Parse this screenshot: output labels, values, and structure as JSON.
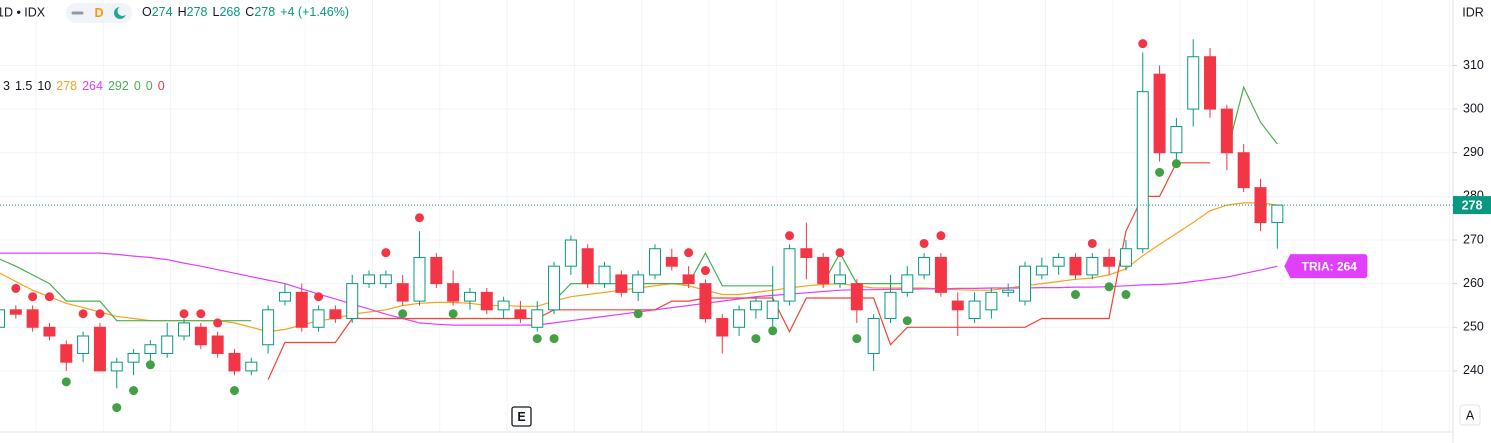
{
  "chart_data": {
    "type": "candlestick",
    "symbol": "1D • IDX",
    "interval": "D",
    "ohlc_labels": [
      "O",
      "H",
      "L",
      "C"
    ],
    "change": "+4 (+1.46%)",
    "indicator": {
      "params": [
        3,
        1.5,
        10
      ],
      "values": [
        278,
        264,
        292,
        0,
        0,
        0
      ],
      "colors": [
        "#f7a21b",
        "#e040fb",
        "#4caf50",
        "#4caf50",
        "#4caf50",
        "#f23645"
      ]
    },
    "currency": "IDR",
    "earnings_marker": "E",
    "auto_button": "A",
    "up_color": "#089981",
    "down_color": "#f23645",
    "open": [
      250,
      254,
      254,
      250,
      246,
      244,
      250,
      240,
      242,
      244,
      244,
      248,
      250,
      248,
      244,
      240,
      246,
      256,
      258,
      250,
      254,
      252,
      260,
      260,
      260,
      256,
      266,
      260,
      256,
      258,
      254,
      254,
      250,
      254,
      264,
      268,
      260,
      262,
      258,
      262,
      266,
      262,
      260,
      252,
      250,
      254,
      252,
      256,
      268,
      266,
      260,
      260,
      244,
      252,
      258,
      262,
      266,
      256,
      252,
      254,
      258,
      256,
      262,
      264,
      266,
      262,
      266,
      264,
      268,
      308,
      290,
      300,
      312,
      300,
      290,
      282,
      274
    ],
    "high": [
      256,
      255,
      255,
      251,
      247,
      249,
      251,
      243,
      245,
      247,
      251,
      252,
      251,
      249,
      245,
      243,
      255,
      260,
      260,
      255,
      255,
      262,
      263,
      263,
      262,
      272,
      267,
      263,
      259,
      259,
      257,
      256,
      256,
      265,
      271,
      269,
      265,
      263,
      263,
      269,
      268,
      264,
      261,
      253,
      255,
      257,
      264,
      269,
      274,
      267,
      265,
      261,
      253,
      262,
      264,
      267,
      267,
      258,
      258,
      259,
      260,
      265,
      266,
      267,
      267,
      267,
      268,
      270,
      313,
      310,
      298,
      316,
      314,
      301,
      292,
      284,
      278
    ],
    "low": [
      248,
      252,
      249,
      247,
      240,
      242,
      240,
      236,
      239,
      242,
      243,
      247,
      245,
      243,
      239,
      239,
      244,
      255,
      249,
      249,
      251,
      251,
      259,
      259,
      255,
      255,
      259,
      255,
      254,
      253,
      252,
      251,
      249,
      253,
      262,
      259,
      259,
      257,
      256,
      261,
      263,
      259,
      251,
      244,
      248,
      252,
      250,
      255,
      261,
      259,
      259,
      251,
      240,
      251,
      257,
      261,
      257,
      248,
      251,
      252,
      257,
      255,
      261,
      262,
      261,
      261,
      262,
      263,
      267,
      288,
      288,
      296,
      298,
      286,
      281,
      272,
      268
    ],
    "close": [
      254,
      253,
      250,
      248,
      242,
      248,
      240,
      242,
      244,
      246,
      248,
      251,
      246,
      244,
      240,
      242,
      254,
      258,
      250,
      254,
      252,
      260,
      262,
      262,
      256,
      266,
      260,
      256,
      258,
      254,
      256,
      252,
      254,
      264,
      270,
      260,
      264,
      258,
      262,
      268,
      264,
      260,
      252,
      248,
      254,
      256,
      256,
      268,
      266,
      260,
      262,
      254,
      252,
      258,
      262,
      266,
      258,
      254,
      256,
      258,
      258.5,
      264,
      264,
      266,
      262,
      266,
      264,
      268,
      304,
      290,
      296,
      312,
      300,
      290,
      282,
      274,
      278
    ],
    "series": [
      {
        "style": "line",
        "color": "#f7a21b",
        "values": [
          262.5,
          260.5,
          258.5,
          257,
          255.5,
          254.5,
          253.5,
          252.5,
          252,
          251.5,
          251.5,
          251.5,
          251.5,
          251.5,
          251,
          250,
          249,
          249.5,
          250.5,
          251.5,
          252,
          253,
          253.5,
          254,
          255,
          255.5,
          255.7,
          255.7,
          255.5,
          255,
          255,
          254.8,
          254.8,
          256,
          257,
          257.5,
          258,
          258.5,
          259,
          259.5,
          260,
          259.5,
          258.5,
          257.5,
          257.5,
          258,
          258.5,
          259,
          259.5,
          259.8,
          260,
          259.5,
          259,
          259,
          259,
          259,
          258.8,
          258.6,
          258.5,
          258.5,
          259,
          259.5,
          260,
          260.5,
          261,
          261.3,
          262,
          263.4,
          266.4,
          269,
          271.5,
          274,
          276.7,
          278,
          278.5,
          278.5,
          278
        ]
      },
      {
        "style": "line",
        "color": "#e040fb",
        "label": "TRIA: 264",
        "values": [
          267,
          267,
          267,
          267,
          267,
          267,
          267,
          266.7,
          266.3,
          266,
          265.5,
          264.7,
          264,
          263.2,
          262.4,
          261.6,
          260.8,
          260,
          258.8,
          257.6,
          256.5,
          255.3,
          254.2,
          253,
          252,
          251,
          250.7,
          250.5,
          250.5,
          250.5,
          250.5,
          250.5,
          250.5,
          251,
          251.5,
          252,
          252.5,
          253,
          253.5,
          254,
          254.5,
          255,
          255.5,
          256,
          256.5,
          257,
          257.3,
          257.6,
          257.9,
          258.2,
          258.5,
          258.6,
          258.6,
          258.7,
          258.7,
          258.8,
          258.8,
          258.9,
          258.9,
          259,
          259,
          259,
          259.1,
          259.1,
          259.2,
          259.2,
          259.3,
          259.5,
          259.7,
          259.8,
          260,
          260.5,
          261,
          261.5,
          262.3,
          263.1,
          264
        ]
      },
      {
        "style": "line",
        "color": "#4caf50",
        "values": [
          265.7,
          264,
          262,
          260,
          256,
          256,
          256,
          251.5,
          251.5,
          251.5,
          251.5,
          251.5,
          251.5,
          251.5,
          251.5,
          251.5,
          null,
          null,
          null,
          null,
          null,
          null,
          null,
          null,
          null,
          null,
          null,
          null,
          null,
          null,
          null,
          null,
          null,
          256,
          260,
          260,
          260,
          260,
          260,
          260,
          260,
          260,
          267,
          259.5,
          259.5,
          259.5,
          259.5,
          null,
          null,
          260,
          267,
          260,
          260,
          260,
          260,
          null,
          null,
          null,
          null,
          null,
          null,
          null,
          null,
          null,
          null,
          null,
          null,
          null,
          null,
          null,
          null,
          null,
          null,
          290,
          305,
          297,
          292
        ]
      },
      {
        "style": "line",
        "color": "#f44336",
        "values": [
          null,
          null,
          null,
          null,
          null,
          null,
          null,
          null,
          null,
          null,
          null,
          null,
          null,
          null,
          null,
          null,
          238,
          246.5,
          246.5,
          246.5,
          246.5,
          252,
          252,
          252,
          252,
          252,
          252,
          252,
          252,
          252,
          252,
          252,
          252,
          254,
          254,
          254,
          254,
          254,
          254,
          254,
          256,
          256,
          256.7,
          256.7,
          256.7,
          256.7,
          256.7,
          249,
          256.7,
          256.7,
          256.7,
          256.7,
          256.7,
          246,
          250,
          250,
          250,
          250,
          250,
          250,
          250,
          250,
          252,
          252,
          252,
          252,
          252,
          272,
          280,
          280,
          287.7,
          287.7,
          287.7,
          null,
          null,
          null,
          null
        ]
      },
      {
        "style": "dots",
        "color": "#f23645",
        "values": [
          null,
          258.9,
          257,
          257,
          null,
          253.1,
          253.1,
          null,
          null,
          null,
          null,
          253.1,
          253.1,
          251,
          null,
          null,
          null,
          null,
          null,
          257,
          null,
          null,
          null,
          267.1,
          null,
          275.1,
          null,
          null,
          null,
          null,
          null,
          null,
          null,
          null,
          null,
          null,
          null,
          null,
          null,
          null,
          null,
          267.1,
          263,
          null,
          null,
          null,
          null,
          271,
          null,
          null,
          267.1,
          null,
          null,
          null,
          null,
          269.2,
          271,
          null,
          null,
          null,
          null,
          null,
          null,
          null,
          null,
          269.2,
          null,
          null,
          315,
          null,
          null,
          null,
          null,
          null,
          null,
          null,
          null
        ]
      },
      {
        "style": "dots",
        "color": "#43a047",
        "values": [
          null,
          null,
          null,
          null,
          237.5,
          null,
          null,
          231.6,
          235.5,
          241.4,
          null,
          null,
          null,
          null,
          235.5,
          null,
          null,
          null,
          null,
          null,
          null,
          null,
          null,
          null,
          253.1,
          null,
          null,
          253.1,
          null,
          null,
          null,
          null,
          247.4,
          247.4,
          null,
          null,
          null,
          null,
          253.1,
          null,
          null,
          null,
          null,
          null,
          null,
          247.4,
          249.2,
          null,
          null,
          null,
          null,
          247.4,
          null,
          null,
          251.5,
          null,
          null,
          null,
          null,
          null,
          null,
          null,
          null,
          null,
          257.5,
          null,
          259.3,
          257.5,
          null,
          285.5,
          287.5,
          null,
          null,
          null,
          null,
          null,
          null
        ]
      }
    ],
    "ylim": [
      226,
      325
    ],
    "yticks": [
      240,
      250,
      260,
      270,
      280,
      290,
      300,
      310
    ],
    "grid": true
  }
}
